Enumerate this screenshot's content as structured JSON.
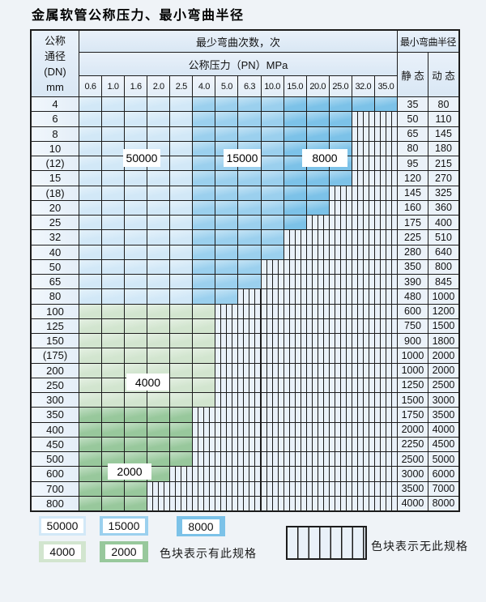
{
  "title": "金属软管公称压力、最小弯曲半径",
  "chart_data": {
    "type": "table",
    "title": "金属软管公称压力、最小弯曲半径",
    "header": {
      "dn_lines": [
        "公称",
        "通径",
        "(DN)",
        "mm"
      ],
      "bend_cycles_label": "最少弯曲次数，次",
      "pressure_label": "公称压力（PN）MPa",
      "min_radius_label": "最小弯曲半径",
      "static_label": "静 态",
      "dynamic_label": "动 态"
    },
    "pressure_columns": [
      "0.6",
      "1.0",
      "1.6",
      "2.0",
      "2.5",
      "4.0",
      "5.0",
      "6.3",
      "10.0",
      "15.0",
      "20.0",
      "25.0",
      "32.0",
      "35.0"
    ],
    "cycle_zones": [
      {
        "cycles": "50000",
        "color": "#d2e8f7",
        "applies_to": "pressure columns 0.6–2.5",
        "col_start": 0,
        "col_end": 4
      },
      {
        "cycles": "15000",
        "color": "#9bd0ee",
        "applies_to": "pressure columns 4.0–10.0",
        "col_start": 5,
        "col_end": 8
      },
      {
        "cycles": "8000",
        "color": "#7cc2e8",
        "applies_to": "pressure columns 15.0–35.0",
        "col_start": 9,
        "col_end": 13
      },
      {
        "cycles": "4000",
        "color": "#d2e5cf",
        "applies_to": "rows DN100–DN300"
      },
      {
        "cycles": "2000",
        "color": "#98c89c",
        "applies_to": "rows DN350–DN800"
      }
    ],
    "rows": [
      {
        "dn": "4",
        "available_cols": 14,
        "shade": "blue",
        "max_pn": "35.0",
        "static": "35",
        "dynamic": "80"
      },
      {
        "dn": "6",
        "available_cols": 12,
        "shade": "blue",
        "max_pn": "25.0",
        "static": "50",
        "dynamic": "110"
      },
      {
        "dn": "8",
        "available_cols": 12,
        "shade": "blue",
        "max_pn": "25.0",
        "static": "65",
        "dynamic": "145"
      },
      {
        "dn": "10",
        "available_cols": 12,
        "shade": "blue",
        "max_pn": "25.0",
        "static": "80",
        "dynamic": "180"
      },
      {
        "dn": "(12)",
        "available_cols": 12,
        "shade": "blue",
        "max_pn": "25.0",
        "static": "95",
        "dynamic": "215"
      },
      {
        "dn": "15",
        "available_cols": 12,
        "shade": "blue",
        "max_pn": "25.0",
        "static": "120",
        "dynamic": "270"
      },
      {
        "dn": "(18)",
        "available_cols": 11,
        "shade": "blue",
        "max_pn": "20.0",
        "static": "145",
        "dynamic": "325"
      },
      {
        "dn": "20",
        "available_cols": 11,
        "shade": "blue",
        "max_pn": "20.0",
        "static": "160",
        "dynamic": "360"
      },
      {
        "dn": "25",
        "available_cols": 10,
        "shade": "blue",
        "max_pn": "15.0",
        "static": "175",
        "dynamic": "400"
      },
      {
        "dn": "32",
        "available_cols": 9,
        "shade": "blue",
        "max_pn": "10.0",
        "static": "225",
        "dynamic": "510"
      },
      {
        "dn": "40",
        "available_cols": 9,
        "shade": "blue",
        "max_pn": "10.0",
        "static": "280",
        "dynamic": "640"
      },
      {
        "dn": "50",
        "available_cols": 8,
        "shade": "blue",
        "max_pn": "6.3",
        "static": "350",
        "dynamic": "800"
      },
      {
        "dn": "65",
        "available_cols": 8,
        "shade": "blue",
        "max_pn": "6.3",
        "static": "390",
        "dynamic": "845"
      },
      {
        "dn": "80",
        "available_cols": 7,
        "shade": "blue",
        "max_pn": "5.0",
        "static": "480",
        "dynamic": "1000"
      },
      {
        "dn": "100",
        "available_cols": 6,
        "shade": "green-4000",
        "max_pn": "4.0",
        "static": "600",
        "dynamic": "1200"
      },
      {
        "dn": "125",
        "available_cols": 6,
        "shade": "green-4000",
        "max_pn": "4.0",
        "static": "750",
        "dynamic": "1500"
      },
      {
        "dn": "150",
        "available_cols": 6,
        "shade": "green-4000",
        "max_pn": "4.0",
        "static": "900",
        "dynamic": "1800"
      },
      {
        "dn": "(175)",
        "available_cols": 6,
        "shade": "green-4000",
        "max_pn": "4.0",
        "static": "1000",
        "dynamic": "2000"
      },
      {
        "dn": "200",
        "available_cols": 6,
        "shade": "green-4000",
        "max_pn": "4.0",
        "static": "1000",
        "dynamic": "2000"
      },
      {
        "dn": "250",
        "available_cols": 6,
        "shade": "green-4000",
        "max_pn": "4.0",
        "static": "1250",
        "dynamic": "2500"
      },
      {
        "dn": "300",
        "available_cols": 6,
        "shade": "green-4000",
        "max_pn": "4.0",
        "static": "1500",
        "dynamic": "3000"
      },
      {
        "dn": "350",
        "available_cols": 5,
        "shade": "green-2000",
        "max_pn": "2.5",
        "static": "1750",
        "dynamic": "3500"
      },
      {
        "dn": "400",
        "available_cols": 5,
        "shade": "green-2000",
        "max_pn": "2.5",
        "static": "2000",
        "dynamic": "4000"
      },
      {
        "dn": "450",
        "available_cols": 5,
        "shade": "green-2000",
        "max_pn": "2.5",
        "static": "2250",
        "dynamic": "4500"
      },
      {
        "dn": "500",
        "available_cols": 5,
        "shade": "green-2000",
        "max_pn": "2.5",
        "static": "2500",
        "dynamic": "5000"
      },
      {
        "dn": "600",
        "available_cols": 4,
        "shade": "green-2000",
        "max_pn": "2.0",
        "static": "3000",
        "dynamic": "6000"
      },
      {
        "dn": "700",
        "available_cols": 3,
        "shade": "green-2000",
        "max_pn": "1.6",
        "static": "3500",
        "dynamic": "7000"
      },
      {
        "dn": "800",
        "available_cols": 3,
        "shade": "green-2000",
        "max_pn": "1.6",
        "static": "4000",
        "dynamic": "8000"
      }
    ],
    "overlay_labels": [
      {
        "text": "50000"
      },
      {
        "text": "15000"
      },
      {
        "text": "8000"
      },
      {
        "text": "4000"
      },
      {
        "text": "2000"
      }
    ]
  },
  "legend": {
    "items": [
      {
        "label": "50000",
        "color": "#d2e8f7"
      },
      {
        "label": "15000",
        "color": "#9bd0ee"
      },
      {
        "label": "8000",
        "color": "#7cc2e8"
      },
      {
        "label": "4000",
        "color": "#d2e5cf"
      },
      {
        "label": "2000",
        "color": "#98c89c"
      }
    ],
    "has_spec_note": "色块表示有此规格",
    "no_spec_note": "色块表示无此规格"
  },
  "colors": {
    "grid_line": "#1c1c1c",
    "hatch_bg": "#e9f1f9",
    "header_bg": "#dfeaf5",
    "page_bg": "#eff3f7"
  }
}
